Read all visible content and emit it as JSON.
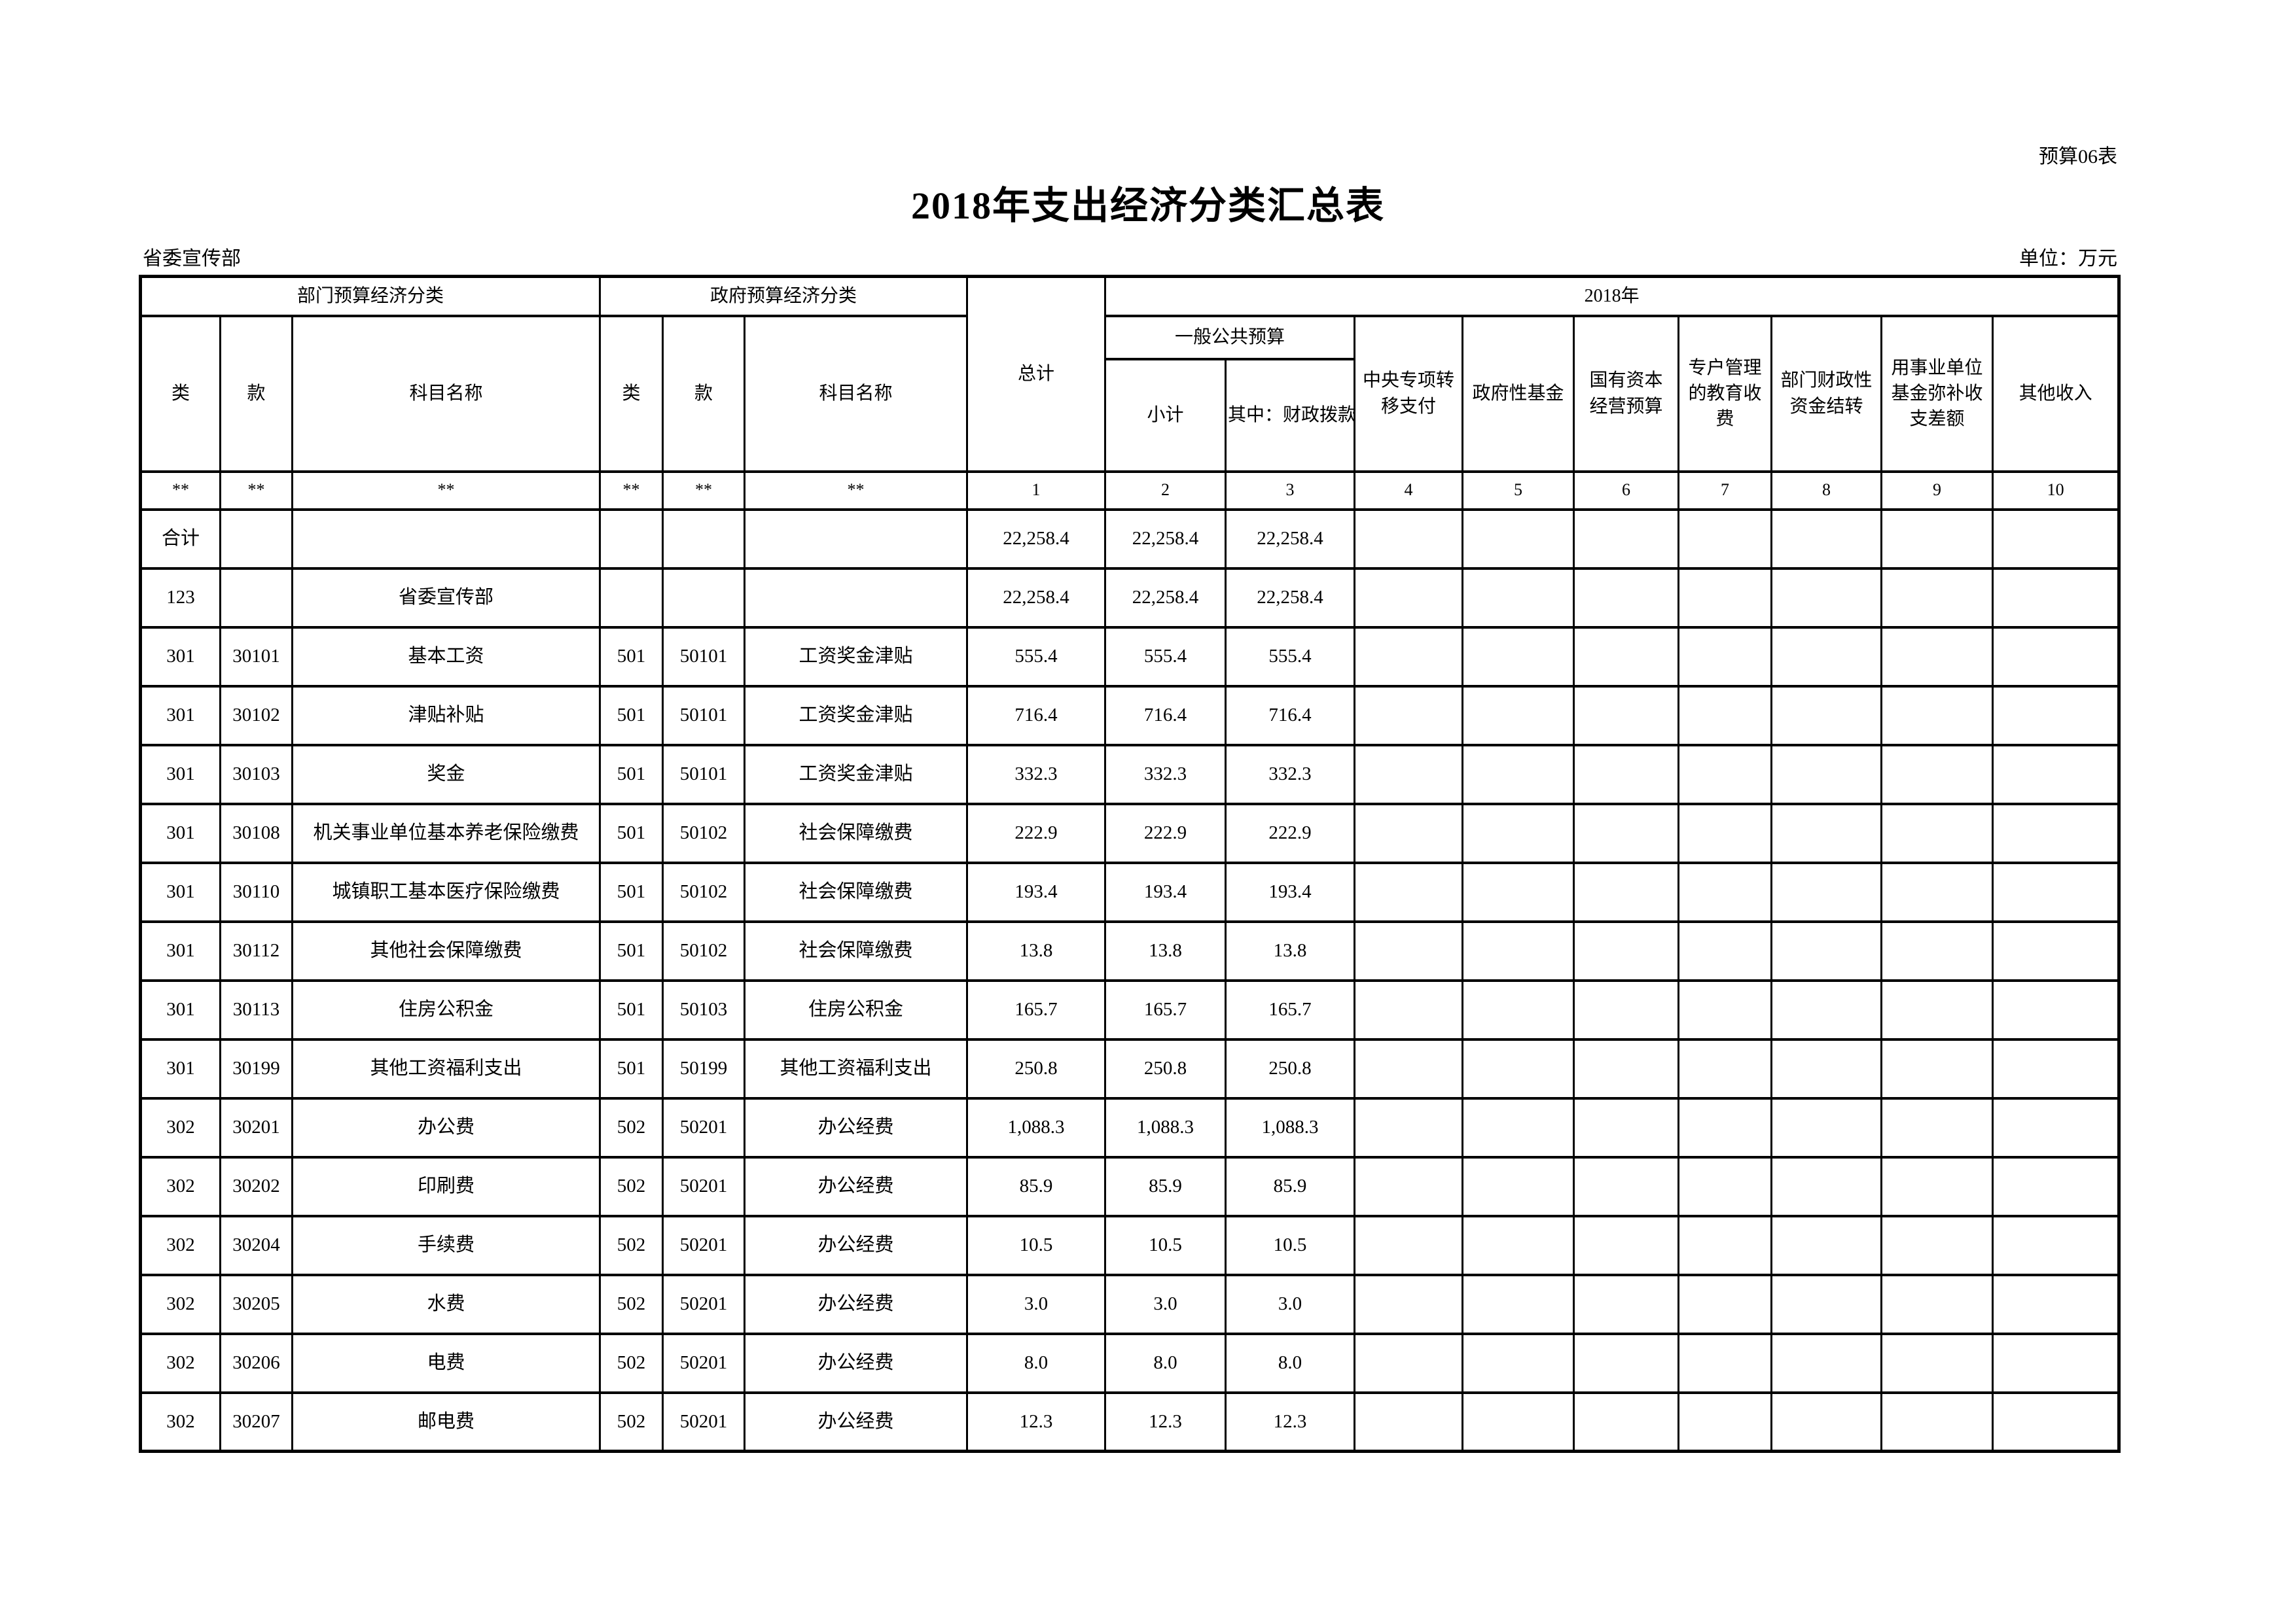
{
  "page": {
    "form_code": "预算06表",
    "title": "2018年支出经济分类汇总表",
    "department": "省委宣传部",
    "unit_note": "单位：万元"
  },
  "table": {
    "header": {
      "dept_group": "部门预算经济分类",
      "gov_group": "政府预算经济分类",
      "total": "总计",
      "year_group": "2018年",
      "general_public_budget": "一般公共预算",
      "col_class": "类",
      "col_section": "款",
      "col_subject": "科目名称",
      "col_class2": "类",
      "col_section2": "款",
      "col_subject2": "科目名称",
      "subtotal": "小计",
      "fiscal_alloc": "其中：财政拨款",
      "central_transfer": "中央专项转\n移支付",
      "gov_fund": "政府性基金",
      "state_capital": "国有资本\n经营预算",
      "edu_fee": "专户管理\n的教育收\n费",
      "dept_fiscal_carryover": "部门财政性\n资金结转",
      "psu_fund_offset": "用事业单位\n基金弥补收\n支差额",
      "other_income": "其他收入"
    },
    "marker_row": [
      "**",
      "**",
      "**",
      "**",
      "**",
      "**",
      "1",
      "2",
      "3",
      "4",
      "5",
      "6",
      "7",
      "8",
      "9",
      "10"
    ],
    "rows": [
      [
        "合计",
        "",
        "",
        "",
        "",
        "",
        "22,258.4",
        "22,258.4",
        "22,258.4",
        "",
        "",
        "",
        "",
        "",
        "",
        ""
      ],
      [
        "123",
        "",
        "省委宣传部",
        "",
        "",
        "",
        "22,258.4",
        "22,258.4",
        "22,258.4",
        "",
        "",
        "",
        "",
        "",
        "",
        ""
      ],
      [
        "301",
        "30101",
        "基本工资",
        "501",
        "50101",
        "工资奖金津贴",
        "555.4",
        "555.4",
        "555.4",
        "",
        "",
        "",
        "",
        "",
        "",
        ""
      ],
      [
        "301",
        "30102",
        "津贴补贴",
        "501",
        "50101",
        "工资奖金津贴",
        "716.4",
        "716.4",
        "716.4",
        "",
        "",
        "",
        "",
        "",
        "",
        ""
      ],
      [
        "301",
        "30103",
        "奖金",
        "501",
        "50101",
        "工资奖金津贴",
        "332.3",
        "332.3",
        "332.3",
        "",
        "",
        "",
        "",
        "",
        "",
        ""
      ],
      [
        "301",
        "30108",
        "机关事业单位基本养老保险缴费",
        "501",
        "50102",
        "社会保障缴费",
        "222.9",
        "222.9",
        "222.9",
        "",
        "",
        "",
        "",
        "",
        "",
        ""
      ],
      [
        "301",
        "30110",
        "城镇职工基本医疗保险缴费",
        "501",
        "50102",
        "社会保障缴费",
        "193.4",
        "193.4",
        "193.4",
        "",
        "",
        "",
        "",
        "",
        "",
        ""
      ],
      [
        "301",
        "30112",
        "其他社会保障缴费",
        "501",
        "50102",
        "社会保障缴费",
        "13.8",
        "13.8",
        "13.8",
        "",
        "",
        "",
        "",
        "",
        "",
        ""
      ],
      [
        "301",
        "30113",
        "住房公积金",
        "501",
        "50103",
        "住房公积金",
        "165.7",
        "165.7",
        "165.7",
        "",
        "",
        "",
        "",
        "",
        "",
        ""
      ],
      [
        "301",
        "30199",
        "其他工资福利支出",
        "501",
        "50199",
        "其他工资福利支出",
        "250.8",
        "250.8",
        "250.8",
        "",
        "",
        "",
        "",
        "",
        "",
        ""
      ],
      [
        "302",
        "30201",
        "办公费",
        "502",
        "50201",
        "办公经费",
        "1,088.3",
        "1,088.3",
        "1,088.3",
        "",
        "",
        "",
        "",
        "",
        "",
        ""
      ],
      [
        "302",
        "30202",
        "印刷费",
        "502",
        "50201",
        "办公经费",
        "85.9",
        "85.9",
        "85.9",
        "",
        "",
        "",
        "",
        "",
        "",
        ""
      ],
      [
        "302",
        "30204",
        "手续费",
        "502",
        "50201",
        "办公经费",
        "10.5",
        "10.5",
        "10.5",
        "",
        "",
        "",
        "",
        "",
        "",
        ""
      ],
      [
        "302",
        "30205",
        "水费",
        "502",
        "50201",
        "办公经费",
        "3.0",
        "3.0",
        "3.0",
        "",
        "",
        "",
        "",
        "",
        "",
        ""
      ],
      [
        "302",
        "30206",
        "电费",
        "502",
        "50201",
        "办公经费",
        "8.0",
        "8.0",
        "8.0",
        "",
        "",
        "",
        "",
        "",
        "",
        ""
      ],
      [
        "302",
        "30207",
        "邮电费",
        "502",
        "50201",
        "办公经费",
        "12.3",
        "12.3",
        "12.3",
        "",
        "",
        "",
        "",
        "",
        "",
        ""
      ]
    ]
  }
}
